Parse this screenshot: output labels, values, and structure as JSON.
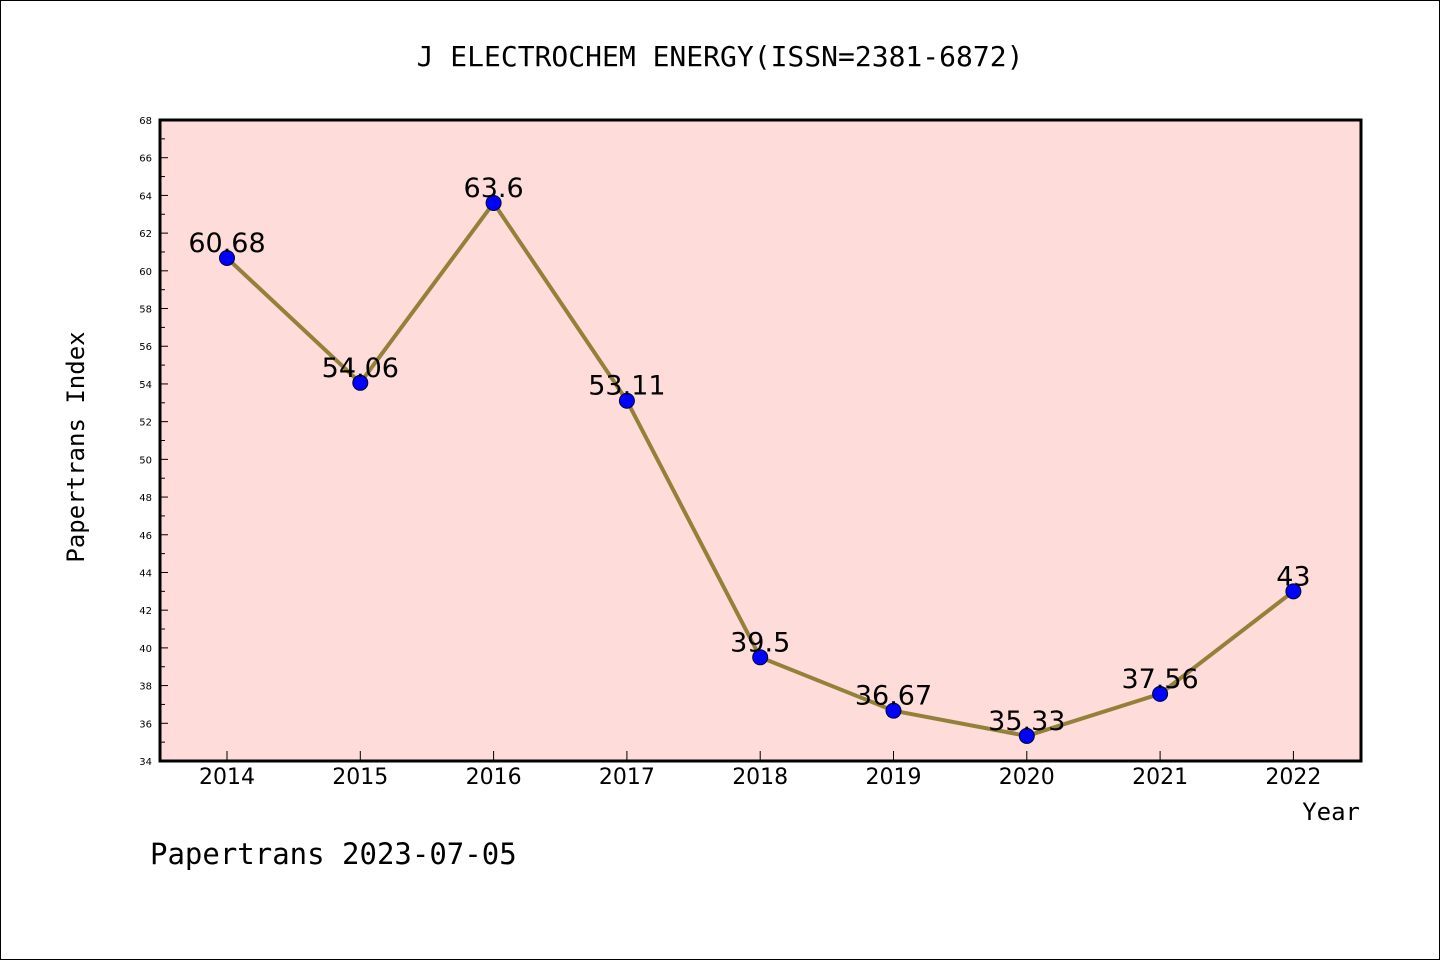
{
  "chart_data": {
    "type": "line",
    "title": "J ELECTROCHEM ENERGY(ISSN=2381-6872)",
    "xlabel": "Year",
    "ylabel": "Papertrans Index",
    "categories": [
      "2014",
      "2015",
      "2016",
      "2017",
      "2018",
      "2019",
      "2020",
      "2021",
      "2022"
    ],
    "values": [
      60.68,
      54.06,
      63.6,
      53.11,
      39.5,
      36.67,
      35.33,
      37.56,
      43
    ],
    "data_labels": [
      "60.68",
      "54.06",
      "63.6",
      "53.11",
      "39.5",
      "36.67",
      "35.33",
      "37.56",
      "43"
    ],
    "ylim": [
      34,
      68
    ],
    "yticks": [
      "34",
      "36",
      "38",
      "40",
      "42",
      "44",
      "46",
      "48",
      "50",
      "52",
      "54",
      "56",
      "58",
      "60",
      "62",
      "64",
      "66",
      "68"
    ],
    "grid": false,
    "legend": "none",
    "colors": {
      "plot_background": "#FDDCDA",
      "line": "#948139",
      "marker": "#0000FF",
      "axis": "#000000"
    }
  },
  "footer": {
    "text": "Papertrans 2023-07-05"
  }
}
